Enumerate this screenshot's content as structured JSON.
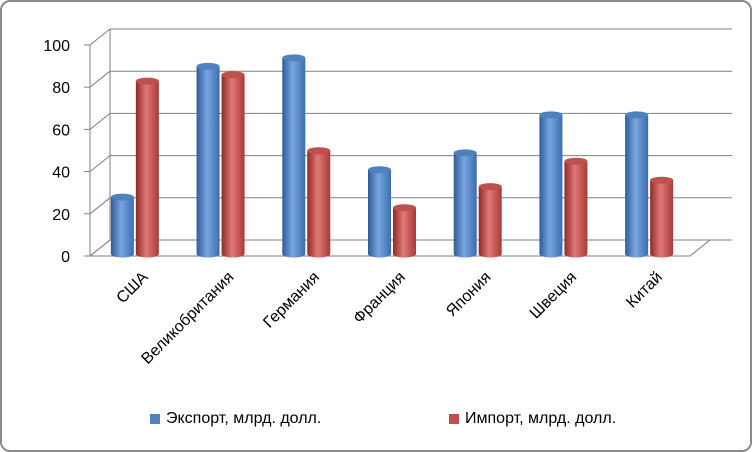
{
  "chart_data": {
    "type": "bar",
    "style": "3d-cylinder",
    "categories": [
      "США",
      "Великобритания",
      "Германия",
      "Франция",
      "Япония",
      "Швеция",
      "Китай"
    ],
    "series": [
      {
        "name": "Экспорт, млрд. долл.",
        "color": "#4F81BD",
        "values": [
          26,
          88,
          92,
          39,
          47,
          65,
          65
        ]
      },
      {
        "name": "Импорт, млрд. долл.",
        "color": "#C0504D",
        "values": [
          81,
          84,
          48,
          21,
          31,
          43,
          34
        ]
      }
    ],
    "yticks": [
      0,
      20,
      40,
      60,
      80,
      100
    ],
    "ylim": [
      0,
      100
    ],
    "grid": true,
    "legend_position": "bottom"
  }
}
